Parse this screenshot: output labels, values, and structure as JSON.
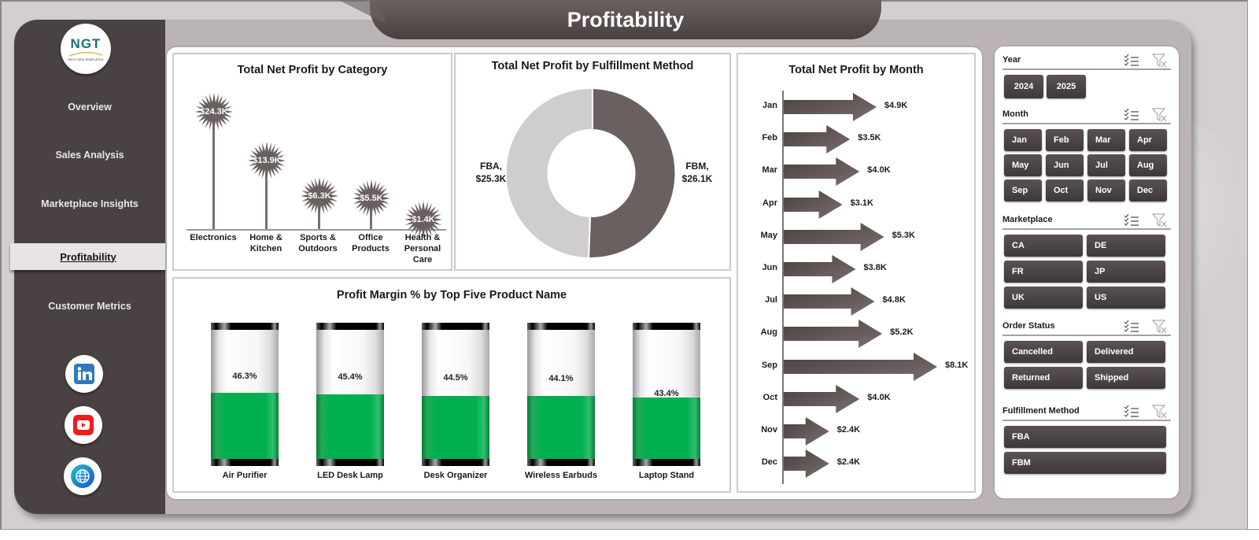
{
  "header": {
    "title": "Profitability"
  },
  "logo": {
    "main": "NGT",
    "sub": "NEXT GEN TEMPLATES"
  },
  "sidebar": {
    "items": [
      {
        "label": "Overview",
        "active": false
      },
      {
        "label": "Sales Analysis",
        "active": false
      },
      {
        "label": "Marketplace Insights",
        "active": false
      },
      {
        "label": "Profitability",
        "active": true
      },
      {
        "label": "Customer Metrics",
        "active": false
      }
    ],
    "social": [
      {
        "name": "linkedin-icon",
        "color": "#2f78bd"
      },
      {
        "name": "youtube-icon",
        "color": "#ee1c1c"
      },
      {
        "name": "globe-icon",
        "color": "#1a7fd6"
      }
    ]
  },
  "charts": {
    "category": {
      "title": "Total Net Profit by Category",
      "items": [
        {
          "label_lines": [
            "Electronics"
          ],
          "value": "$24.3K"
        },
        {
          "label_lines": [
            "Home &",
            "Kitchen"
          ],
          "value": "$13.9K"
        },
        {
          "label_lines": [
            "Sports &",
            "Outdoors"
          ],
          "value": "$6.3K"
        },
        {
          "label_lines": [
            "Office",
            "Products"
          ],
          "value": "$5.5K"
        },
        {
          "label_lines": [
            "Health &",
            "Personal",
            "Care"
          ],
          "value": "$1.4K"
        }
      ]
    },
    "fulfillment": {
      "title": "Total Net Profit by Fulfillment Method",
      "fba_label": "FBA,",
      "fba_value": "$25.3K",
      "fbm_label": "FBM,",
      "fbm_value": "$26.1K"
    },
    "month": {
      "title": "Total Net Profit by Month",
      "items": [
        {
          "label": "Jan",
          "value": "$4.9K"
        },
        {
          "label": "Feb",
          "value": "$3.5K"
        },
        {
          "label": "Mar",
          "value": "$4.0K"
        },
        {
          "label": "Apr",
          "value": "$3.1K"
        },
        {
          "label": "May",
          "value": "$5.3K"
        },
        {
          "label": "Jun",
          "value": "$3.8K"
        },
        {
          "label": "Jul",
          "value": "$4.8K"
        },
        {
          "label": "Aug",
          "value": "$5.2K"
        },
        {
          "label": "Sep",
          "value": "$8.1K"
        },
        {
          "label": "Oct",
          "value": "$4.0K"
        },
        {
          "label": "Nov",
          "value": "$2.4K"
        },
        {
          "label": "Dec",
          "value": "$2.4K"
        }
      ]
    },
    "margin": {
      "title": "Profit Margin % by Top Five Product Name",
      "items": [
        {
          "label": "Air Purifier",
          "value": "46.3%"
        },
        {
          "label": "LED Desk Lamp",
          "value": "45.4%"
        },
        {
          "label": "Desk Organizer",
          "value": "44.5%"
        },
        {
          "label": "Wireless Earbuds",
          "value": "44.1%"
        },
        {
          "label": "Laptop Stand",
          "value": "43.4%"
        }
      ]
    }
  },
  "chart_data": [
    {
      "type": "bar",
      "title": "Total Net Profit by Category",
      "categories": [
        "Electronics",
        "Home & Kitchen",
        "Sports & Outdoors",
        "Office Products",
        "Health & Personal Care"
      ],
      "values": [
        24.3,
        13.9,
        6.3,
        5.5,
        1.4
      ],
      "unit": "$K",
      "xlabel": "",
      "ylabel": ""
    },
    {
      "type": "pie",
      "title": "Total Net Profit by Fulfillment Method",
      "categories": [
        "FBA",
        "FBM"
      ],
      "values": [
        25.3,
        26.1
      ],
      "unit": "$K",
      "colors": [
        "#d0cdcd",
        "#6b6060"
      ]
    },
    {
      "type": "bar",
      "orientation": "horizontal",
      "title": "Total Net Profit by Month",
      "categories": [
        "Jan",
        "Feb",
        "Mar",
        "Apr",
        "May",
        "Jun",
        "Jul",
        "Aug",
        "Sep",
        "Oct",
        "Nov",
        "Dec"
      ],
      "values": [
        4.9,
        3.5,
        4.0,
        3.1,
        5.3,
        3.8,
        4.8,
        5.2,
        8.1,
        4.0,
        2.4,
        2.4
      ],
      "unit": "$K"
    },
    {
      "type": "bar",
      "title": "Profit Margin % by Top Five Product Name",
      "categories": [
        "Air Purifier",
        "LED Desk Lamp",
        "Desk Organizer",
        "Wireless Earbuds",
        "Laptop Stand"
      ],
      "values": [
        46.3,
        45.4,
        44.5,
        44.1,
        43.4
      ],
      "unit": "%",
      "ylim": [
        0,
        100
      ]
    }
  ],
  "slicers": {
    "year": {
      "title": "Year",
      "options": [
        "2024",
        "2025"
      ]
    },
    "month": {
      "title": "Month",
      "options": [
        "Jan",
        "Feb",
        "Mar",
        "Apr",
        "May",
        "Jun",
        "Jul",
        "Aug",
        "Sep",
        "Oct",
        "Nov",
        "Dec"
      ]
    },
    "marketplace": {
      "title": "Marketplace",
      "options": [
        "CA",
        "DE",
        "FR",
        "JP",
        "UK",
        "US"
      ]
    },
    "order_status": {
      "title": "Order Status",
      "options": [
        "Cancelled",
        "Delivered",
        "Returned",
        "Shipped"
      ]
    },
    "fulfillment": {
      "title": "Fulfillment Method",
      "options": [
        "FBA",
        "FBM"
      ]
    }
  },
  "colors": {
    "sidebar": "#4a4242",
    "accent_dark": "#6b6060",
    "green": "#00b050",
    "panel": "#bcb4b4"
  }
}
